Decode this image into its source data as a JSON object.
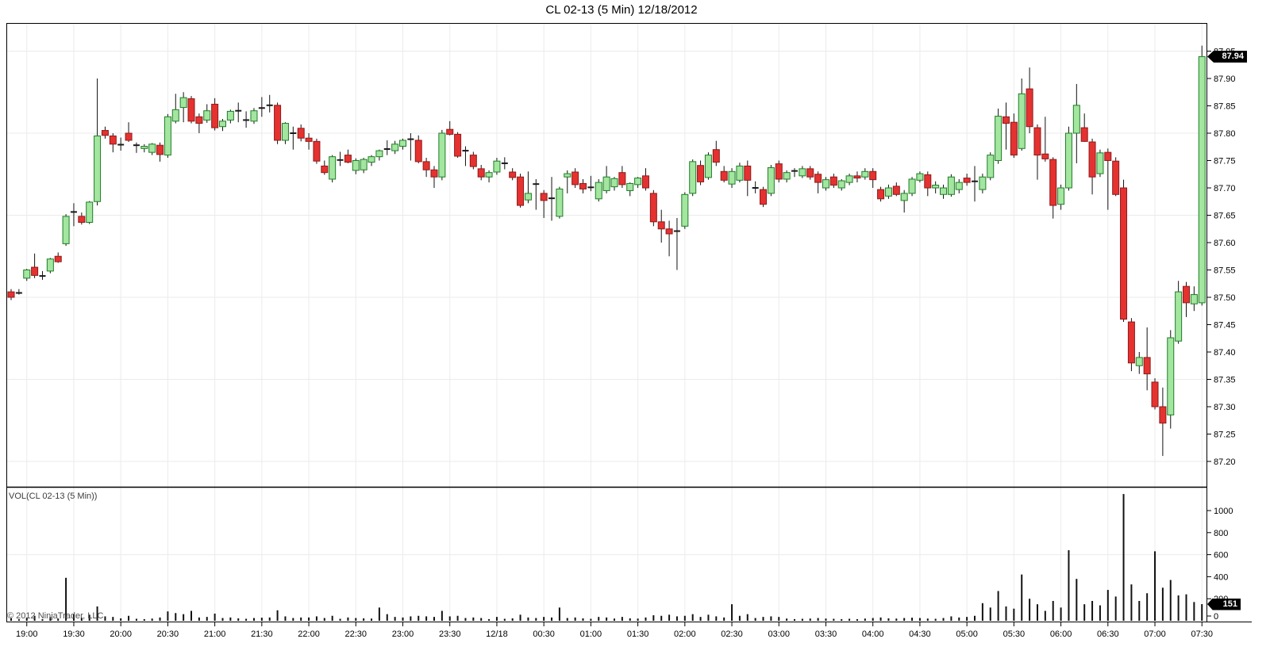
{
  "title": "CL 02-13 (5 Min)  12/18/2012",
  "copyright": "© 2012 NinjaTrader, LLC",
  "badges": {
    "last_price": "87.94",
    "last_volume": "151"
  },
  "colors": {
    "background": "#ffffff",
    "frame": "#000000",
    "gridline": "#ebebeb",
    "up_fill": "#a3e6a0",
    "up_border": "#1f7d26",
    "down_fill": "#e53230",
    "down_border": "#8e1a1a",
    "wick": "#111111",
    "doji": "#1a1a1a",
    "volume_bar": "#111111",
    "badge_bg": "#000000",
    "badge_text": "#ffffff",
    "axis_text": "#000000"
  },
  "chart_data": {
    "type": "candlestick",
    "title": "CL 02-13 (5 Min)  12/18/2012",
    "legend_position": "none",
    "grid": true,
    "panes": [
      {
        "name": "price",
        "y_ticks": [
          "87.95",
          "87.90",
          "87.85",
          "87.80",
          "87.75",
          "87.70",
          "87.65",
          "87.60",
          "87.55",
          "87.50",
          "87.45",
          "87.40",
          "87.35",
          "87.30",
          "87.25",
          "87.20"
        ],
        "ylim": [
          87.15,
          88.0
        ],
        "grid_values": [
          87.95,
          87.8,
          87.65,
          87.5,
          87.35,
          87.2
        ]
      },
      {
        "name": "volume",
        "label": "VOL(CL 02-13 (5 Min))",
        "y_ticks": [
          "1000",
          "800",
          "600",
          "400",
          "200",
          "0"
        ],
        "ylim": [
          0,
          1200
        ],
        "grid_values": [
          600
        ]
      }
    ],
    "x_ticks": [
      "19:00",
      "19:30",
      "20:00",
      "20:30",
      "21:00",
      "21:30",
      "22:00",
      "22:30",
      "23:00",
      "23:30",
      "12/18",
      "00:30",
      "01:00",
      "01:30",
      "02:00",
      "02:30",
      "03:00",
      "03:30",
      "04:00",
      "04:30",
      "05:00",
      "05:30",
      "06:00",
      "06:30",
      "07:00",
      "07:30"
    ],
    "columns": [
      "time",
      "open",
      "high",
      "low",
      "close",
      "volume"
    ],
    "candles": [
      [
        "18:50",
        87.51,
        87.515,
        87.495,
        87.5,
        25
      ],
      [
        "18:55",
        87.51,
        87.515,
        87.505,
        87.508,
        8
      ],
      [
        "19:00",
        87.535,
        87.552,
        87.53,
        87.55,
        30
      ],
      [
        "19:05",
        87.555,
        87.58,
        87.535,
        87.54,
        45
      ],
      [
        "19:10",
        87.54,
        87.548,
        87.532,
        87.539,
        12
      ],
      [
        "19:15",
        87.548,
        87.572,
        87.544,
        87.57,
        35
      ],
      [
        "19:20",
        87.575,
        87.582,
        87.563,
        87.565,
        20
      ],
      [
        "19:25",
        87.598,
        87.652,
        87.594,
        87.648,
        390
      ],
      [
        "19:30",
        87.655,
        87.672,
        87.63,
        87.656,
        60
      ],
      [
        "19:35",
        87.648,
        87.655,
        87.633,
        87.637,
        28
      ],
      [
        "19:40",
        87.637,
        87.676,
        87.634,
        87.674,
        55
      ],
      [
        "19:45",
        87.675,
        87.9,
        87.668,
        87.795,
        130
      ],
      [
        "19:50",
        87.805,
        87.812,
        87.79,
        87.796,
        40
      ],
      [
        "19:55",
        87.795,
        87.8,
        87.765,
        87.78,
        35
      ],
      [
        "20:00",
        87.78,
        87.792,
        87.768,
        87.779,
        22
      ],
      [
        "20:05",
        87.8,
        87.82,
        87.784,
        87.787,
        45
      ],
      [
        "20:10",
        87.775,
        87.783,
        87.764,
        87.778,
        18
      ],
      [
        "20:15",
        87.772,
        87.78,
        87.765,
        87.776,
        15
      ],
      [
        "20:20",
        87.765,
        87.782,
        87.76,
        87.78,
        20
      ],
      [
        "20:25",
        87.778,
        87.783,
        87.748,
        87.761,
        30
      ],
      [
        "20:30",
        87.76,
        87.835,
        87.755,
        87.83,
        85
      ],
      [
        "20:35",
        87.822,
        87.872,
        87.818,
        87.843,
        70
      ],
      [
        "20:40",
        87.847,
        87.875,
        87.82,
        87.865,
        60
      ],
      [
        "20:45",
        87.863,
        87.868,
        87.818,
        87.822,
        90
      ],
      [
        "20:50",
        87.83,
        87.836,
        87.8,
        87.818,
        30
      ],
      [
        "20:55",
        87.824,
        87.853,
        87.819,
        87.841,
        35
      ],
      [
        "21:00",
        87.853,
        87.864,
        87.805,
        87.81,
        65
      ],
      [
        "21:05",
        87.812,
        87.826,
        87.804,
        87.822,
        25
      ],
      [
        "21:10",
        87.824,
        87.843,
        87.818,
        87.84,
        30
      ],
      [
        "21:15",
        87.84,
        87.856,
        87.82,
        87.841,
        22
      ],
      [
        "21:20",
        87.825,
        87.84,
        87.81,
        87.824,
        18
      ],
      [
        "21:25",
        87.822,
        87.846,
        87.817,
        87.841,
        25
      ],
      [
        "21:30",
        87.845,
        87.866,
        87.83,
        87.846,
        28
      ],
      [
        "21:35",
        87.85,
        87.87,
        87.838,
        87.851,
        30
      ],
      [
        "21:40",
        87.851,
        87.856,
        87.78,
        87.787,
        95
      ],
      [
        "21:45",
        87.787,
        87.82,
        87.78,
        87.818,
        40
      ],
      [
        "21:50",
        87.8,
        87.812,
        87.77,
        87.8,
        25
      ],
      [
        "21:55",
        87.809,
        87.816,
        87.785,
        87.791,
        30
      ],
      [
        "22:00",
        87.791,
        87.8,
        87.77,
        87.785,
        30
      ],
      [
        "22:05",
        87.785,
        87.79,
        87.744,
        87.749,
        40
      ],
      [
        "22:10",
        87.74,
        87.75,
        87.724,
        87.728,
        25
      ],
      [
        "22:15",
        87.716,
        87.76,
        87.71,
        87.757,
        45
      ],
      [
        "22:20",
        87.75,
        87.766,
        87.74,
        87.751,
        18
      ],
      [
        "22:25",
        87.76,
        87.77,
        87.745,
        87.747,
        30
      ],
      [
        "22:30",
        87.732,
        87.754,
        87.725,
        87.75,
        25
      ],
      [
        "22:35",
        87.733,
        87.755,
        87.727,
        87.752,
        22
      ],
      [
        "22:40",
        87.747,
        87.76,
        87.74,
        87.757,
        20
      ],
      [
        "22:45",
        87.757,
        87.77,
        87.75,
        87.768,
        120
      ],
      [
        "22:50",
        87.77,
        87.787,
        87.76,
        87.771,
        60
      ],
      [
        "22:55",
        87.768,
        87.786,
        87.762,
        87.78,
        35
      ],
      [
        "23:00",
        87.776,
        87.79,
        87.77,
        87.787,
        30
      ],
      [
        "23:05",
        87.79,
        87.8,
        87.75,
        87.789,
        40
      ],
      [
        "23:10",
        87.787,
        87.796,
        87.745,
        87.748,
        45
      ],
      [
        "23:15",
        87.748,
        87.755,
        87.72,
        87.733,
        40
      ],
      [
        "23:20",
        87.733,
        87.74,
        87.7,
        87.72,
        35
      ],
      [
        "23:25",
        87.72,
        87.806,
        87.714,
        87.8,
        90
      ],
      [
        "23:30",
        87.807,
        87.822,
        87.796,
        87.798,
        40
      ],
      [
        "23:35",
        87.798,
        87.802,
        87.755,
        87.758,
        45
      ],
      [
        "23:40",
        87.77,
        87.776,
        87.74,
        87.768,
        25
      ],
      [
        "23:45",
        87.76,
        87.766,
        87.734,
        87.739,
        30
      ],
      [
        "23:50",
        87.735,
        87.742,
        87.714,
        87.72,
        25
      ],
      [
        "23:55",
        87.72,
        87.732,
        87.71,
        87.728,
        15
      ],
      [
        "00:00",
        87.729,
        87.755,
        87.724,
        87.749,
        35
      ],
      [
        "00:05",
        87.745,
        87.756,
        87.734,
        87.745,
        18
      ],
      [
        "00:10",
        87.729,
        87.736,
        87.714,
        87.719,
        22
      ],
      [
        "00:15",
        87.72,
        87.726,
        87.664,
        87.668,
        55
      ],
      [
        "00:20",
        87.678,
        87.73,
        87.672,
        87.69,
        30
      ],
      [
        "00:25",
        87.707,
        87.716,
        87.66,
        87.707,
        25
      ],
      [
        "00:30",
        87.69,
        87.696,
        87.645,
        87.677,
        35
      ],
      [
        "00:35",
        87.68,
        87.72,
        87.64,
        87.681,
        30
      ],
      [
        "00:40",
        87.648,
        87.702,
        87.644,
        87.698,
        120
      ],
      [
        "00:45",
        87.72,
        87.732,
        87.69,
        87.726,
        25
      ],
      [
        "00:50",
        87.729,
        87.736,
        87.7,
        87.706,
        30
      ],
      [
        "00:55",
        87.708,
        87.716,
        87.69,
        87.698,
        22
      ],
      [
        "01:00",
        87.7,
        87.722,
        87.694,
        87.701,
        18
      ],
      [
        "01:05",
        87.68,
        87.716,
        87.675,
        87.71,
        35
      ],
      [
        "01:10",
        87.695,
        87.74,
        87.69,
        87.72,
        30
      ],
      [
        "01:15",
        87.702,
        87.72,
        87.695,
        87.717,
        20
      ],
      [
        "01:20",
        87.728,
        87.74,
        87.7,
        87.706,
        35
      ],
      [
        "01:25",
        87.695,
        87.71,
        87.685,
        87.708,
        22
      ],
      [
        "01:30",
        87.706,
        87.72,
        87.7,
        87.718,
        20
      ],
      [
        "01:35",
        87.722,
        87.736,
        87.695,
        87.7,
        30
      ],
      [
        "01:40",
        87.69,
        87.696,
        87.63,
        87.638,
        50
      ],
      [
        "01:45",
        87.638,
        87.66,
        87.6,
        87.625,
        45
      ],
      [
        "01:50",
        87.625,
        87.64,
        87.575,
        87.616,
        55
      ],
      [
        "01:55",
        87.62,
        87.645,
        87.55,
        87.621,
        40
      ],
      [
        "02:00",
        87.63,
        87.692,
        87.625,
        87.688,
        45
      ],
      [
        "02:05",
        87.69,
        87.752,
        87.685,
        87.748,
        60
      ],
      [
        "02:10",
        87.741,
        87.75,
        87.705,
        87.711,
        35
      ],
      [
        "02:15",
        87.719,
        87.765,
        87.715,
        87.76,
        55
      ],
      [
        "02:20",
        87.77,
        87.786,
        87.74,
        87.747,
        40
      ],
      [
        "02:25",
        87.73,
        87.74,
        87.71,
        87.714,
        30
      ],
      [
        "02:30",
        87.707,
        87.736,
        87.7,
        87.73,
        150
      ],
      [
        "02:35",
        87.714,
        87.746,
        87.71,
        87.74,
        45
      ],
      [
        "02:40",
        87.74,
        87.75,
        87.685,
        87.714,
        60
      ],
      [
        "02:45",
        87.7,
        87.712,
        87.69,
        87.7,
        25
      ],
      [
        "02:50",
        87.697,
        87.702,
        87.665,
        87.67,
        35
      ],
      [
        "02:55",
        87.69,
        87.742,
        87.685,
        87.737,
        40
      ],
      [
        "03:00",
        87.744,
        87.75,
        87.71,
        87.716,
        35
      ],
      [
        "03:05",
        87.716,
        87.732,
        87.71,
        87.728,
        20
      ],
      [
        "03:10",
        87.73,
        87.736,
        87.72,
        87.731,
        15
      ],
      [
        "03:15",
        87.722,
        87.74,
        87.718,
        87.735,
        18
      ],
      [
        "03:20",
        87.735,
        87.74,
        87.715,
        87.72,
        20
      ],
      [
        "03:25",
        87.725,
        87.73,
        87.69,
        87.71,
        25
      ],
      [
        "03:30",
        87.7,
        87.72,
        87.695,
        87.715,
        20
      ],
      [
        "03:35",
        87.72,
        87.726,
        87.7,
        87.705,
        18
      ],
      [
        "03:40",
        87.7,
        87.716,
        87.695,
        87.713,
        15
      ],
      [
        "03:45",
        87.71,
        87.726,
        87.705,
        87.722,
        18
      ],
      [
        "03:50",
        87.722,
        87.73,
        87.71,
        87.718,
        12
      ],
      [
        "03:55",
        87.72,
        87.736,
        87.715,
        87.73,
        20
      ],
      [
        "04:00",
        87.73,
        87.736,
        87.7,
        87.715,
        25
      ],
      [
        "04:05",
        87.697,
        87.702,
        87.675,
        87.68,
        30
      ],
      [
        "04:10",
        87.685,
        87.706,
        87.68,
        87.7,
        22
      ],
      [
        "04:15",
        87.703,
        87.71,
        87.685,
        87.688,
        20
      ],
      [
        "04:20",
        87.677,
        87.696,
        87.655,
        87.69,
        25
      ],
      [
        "04:25",
        87.69,
        87.72,
        87.685,
        87.716,
        28
      ],
      [
        "04:30",
        87.714,
        87.73,
        87.71,
        87.726,
        25
      ],
      [
        "04:35",
        87.724,
        87.73,
        87.685,
        87.7,
        20
      ],
      [
        "04:40",
        87.7,
        87.712,
        87.69,
        87.705,
        18
      ],
      [
        "04:45",
        87.688,
        87.706,
        87.68,
        87.7,
        25
      ],
      [
        "04:50",
        87.688,
        87.725,
        87.684,
        87.72,
        40
      ],
      [
        "04:55",
        87.697,
        87.716,
        87.69,
        87.71,
        30
      ],
      [
        "05:00",
        87.718,
        87.726,
        87.704,
        87.71,
        35
      ],
      [
        "05:05",
        87.71,
        87.74,
        87.675,
        87.712,
        45
      ],
      [
        "05:10",
        87.697,
        87.726,
        87.69,
        87.72,
        160
      ],
      [
        "05:15",
        87.719,
        87.765,
        87.714,
        87.76,
        120
      ],
      [
        "05:20",
        87.75,
        87.845,
        87.744,
        87.831,
        270
      ],
      [
        "05:25",
        87.83,
        87.856,
        87.77,
        87.818,
        130
      ],
      [
        "05:30",
        87.82,
        87.836,
        87.755,
        87.76,
        110
      ],
      [
        "05:35",
        87.772,
        87.9,
        87.768,
        87.872,
        420
      ],
      [
        "05:40",
        87.881,
        87.92,
        87.8,
        87.812,
        200
      ],
      [
        "05:45",
        87.81,
        87.816,
        87.715,
        87.76,
        150
      ],
      [
        "05:50",
        87.762,
        87.83,
        87.748,
        87.753,
        90
      ],
      [
        "05:55",
        87.752,
        87.756,
        87.644,
        87.668,
        180
      ],
      [
        "06:00",
        87.67,
        87.706,
        87.66,
        87.7,
        120
      ],
      [
        "06:05",
        87.7,
        87.812,
        87.695,
        87.8,
        640
      ],
      [
        "06:10",
        87.8,
        87.89,
        87.745,
        87.851,
        380
      ],
      [
        "06:15",
        87.81,
        87.836,
        87.784,
        87.785,
        150
      ],
      [
        "06:20",
        87.784,
        87.79,
        87.688,
        87.72,
        180
      ],
      [
        "06:25",
        87.726,
        87.77,
        87.72,
        87.764,
        140
      ],
      [
        "06:30",
        87.765,
        87.772,
        87.66,
        87.75,
        280
      ],
      [
        "06:35",
        87.749,
        87.756,
        87.685,
        87.688,
        220
      ],
      [
        "06:40",
        87.7,
        87.715,
        87.455,
        87.46,
        1150
      ],
      [
        "06:45",
        87.455,
        87.462,
        87.365,
        87.38,
        330
      ],
      [
        "06:50",
        87.375,
        87.4,
        87.36,
        87.39,
        180
      ],
      [
        "06:55",
        87.39,
        87.445,
        87.33,
        87.36,
        250
      ],
      [
        "07:00",
        87.345,
        87.352,
        87.295,
        87.3,
        630
      ],
      [
        "07:05",
        87.3,
        87.335,
        87.21,
        87.27,
        300
      ],
      [
        "07:10",
        87.285,
        87.44,
        87.26,
        87.426,
        370
      ],
      [
        "07:15",
        87.42,
        87.53,
        87.415,
        87.51,
        230
      ],
      [
        "07:20",
        87.52,
        87.528,
        87.464,
        87.49,
        240
      ],
      [
        "07:25",
        87.488,
        87.52,
        87.475,
        87.505,
        170
      ],
      [
        "07:30",
        87.49,
        87.96,
        87.485,
        87.94,
        151
      ]
    ]
  }
}
